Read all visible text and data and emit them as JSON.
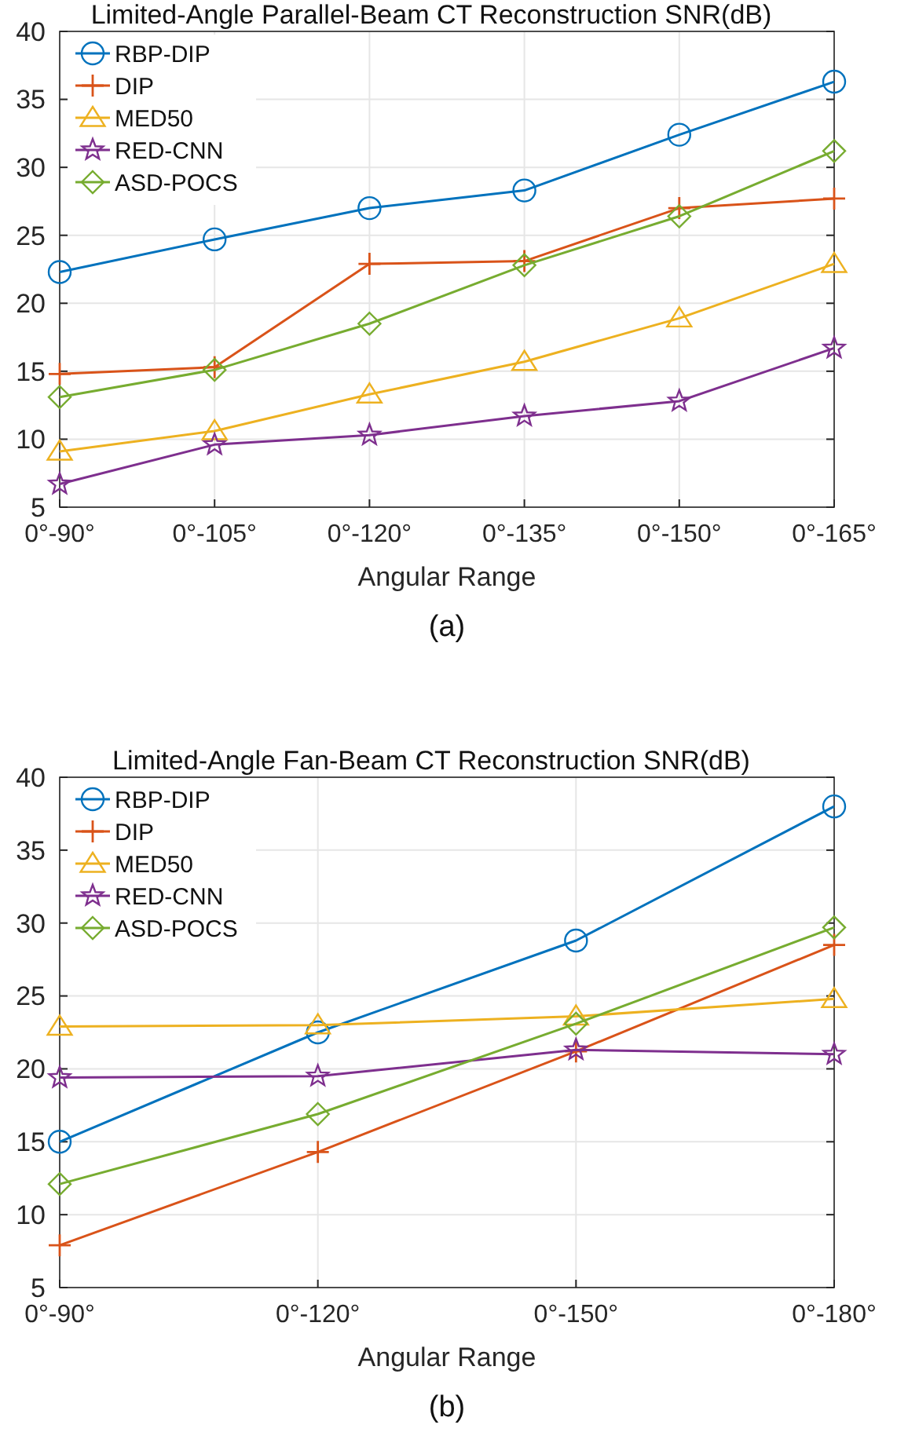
{
  "chart_data": [
    {
      "type": "line",
      "title": "Limited-Angle Parallel-Beam CT Reconstruction SNR(dB)",
      "xlabel": "Angular Range",
      "annotations": [
        "(a)"
      ],
      "categories": [
        "0°-90°",
        "0°-105°",
        "0°-120°",
        "0°-135°",
        "0°-150°",
        "0°-165°"
      ],
      "ylim": [
        5,
        40
      ],
      "yticks": [
        5,
        10,
        15,
        20,
        25,
        30,
        35,
        40
      ],
      "grid": true,
      "legend": "top left",
      "series": [
        {
          "name": "RBP-DIP",
          "color": "#0072bd",
          "marker": "circle",
          "values": [
            22.3,
            24.7,
            27.0,
            28.3,
            32.4,
            36.3
          ]
        },
        {
          "name": "DIP",
          "color": "#d95319",
          "marker": "cross",
          "values": [
            14.8,
            15.3,
            22.9,
            23.1,
            27.0,
            27.7
          ]
        },
        {
          "name": "MED50",
          "color": "#edb120",
          "marker": "triangle",
          "values": [
            9.1,
            10.6,
            13.3,
            15.7,
            18.9,
            22.9
          ]
        },
        {
          "name": "RED-CNN",
          "color": "#7e2f8e",
          "marker": "star",
          "values": [
            6.7,
            9.6,
            10.3,
            11.7,
            12.8,
            16.7
          ]
        },
        {
          "name": "ASD-POCS",
          "color": "#77ac30",
          "marker": "diamond",
          "values": [
            13.1,
            15.1,
            18.5,
            22.8,
            26.4,
            31.2
          ]
        }
      ]
    },
    {
      "type": "line",
      "title": "Limited-Angle Fan-Beam CT Reconstruction SNR(dB)",
      "xlabel": "Angular Range",
      "annotations": [
        "(b)"
      ],
      "categories": [
        "0°-90°",
        "0°-120°",
        "0°-150°",
        "0°-180°"
      ],
      "ylim": [
        5,
        40
      ],
      "yticks": [
        5,
        10,
        15,
        20,
        25,
        30,
        35,
        40
      ],
      "grid": true,
      "legend": "top left",
      "series": [
        {
          "name": "RBP-DIP",
          "color": "#0072bd",
          "marker": "circle",
          "values": [
            15.0,
            22.5,
            28.8,
            38.0
          ]
        },
        {
          "name": "DIP",
          "color": "#d95319",
          "marker": "cross",
          "values": [
            7.9,
            14.3,
            21.2,
            28.5
          ]
        },
        {
          "name": "MED50",
          "color": "#edb120",
          "marker": "triangle",
          "values": [
            22.9,
            23.0,
            23.6,
            24.8
          ]
        },
        {
          "name": "RED-CNN",
          "color": "#7e2f8e",
          "marker": "star",
          "values": [
            19.4,
            19.5,
            21.3,
            21.0
          ]
        },
        {
          "name": "ASD-POCS",
          "color": "#77ac30",
          "marker": "diamond",
          "values": [
            12.1,
            16.9,
            23.1,
            29.7
          ]
        }
      ]
    }
  ]
}
